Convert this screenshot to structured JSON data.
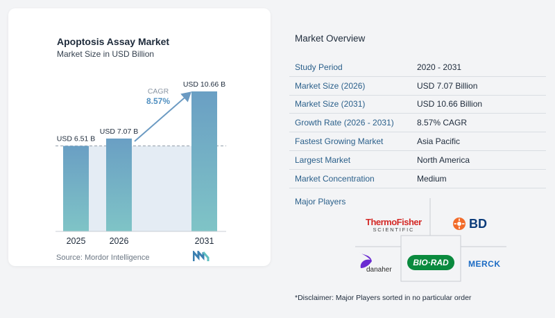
{
  "chart_data": {
    "type": "bar",
    "title": "Apoptosis Assay Market",
    "subtitle": "Market Size in USD Billion",
    "categories": [
      "2025",
      "2026",
      "2031"
    ],
    "values": [
      6.51,
      7.07,
      10.66
    ],
    "data_labels": [
      "USD 6.51 B",
      "USD 7.07 B",
      "USD 10.66 B"
    ],
    "cagr_label": "CAGR",
    "cagr_value": "8.57%",
    "ylim": [
      0,
      11.5
    ],
    "bar_color": "#6a9fc4",
    "bar_color_bottom": "#7fc4c6",
    "area_color": "#e4ecf4",
    "arrow_color": "#6b9ac2",
    "grid": false
  },
  "source_label": "Source:",
  "source_name": "Mordor Intelligence",
  "overview": {
    "title": "Market Overview",
    "rows": [
      {
        "label": "Study Period",
        "value": "2020 - 2031"
      },
      {
        "label": "Market Size (2026)",
        "value": "USD 7.07 Billion"
      },
      {
        "label": "Market Size (2031)",
        "value": "USD 10.66 Billion"
      },
      {
        "label": "Growth Rate (2026 - 2031)",
        "value": "8.57% CAGR"
      },
      {
        "label": "Fastest Growing Market",
        "value": "Asia Pacific"
      },
      {
        "label": "Largest Market",
        "value": "North America"
      },
      {
        "label": "Market Concentration",
        "value": "Medium"
      }
    ]
  },
  "players": {
    "title": "Major Players",
    "thermo_line1": "ThermoFisher",
    "thermo_line2": "SCIENTIFIC",
    "bd": "BD",
    "danaher": "danaher",
    "biorad": "BIO·RAD",
    "merck": "MERCK"
  },
  "disclaimer": "*Disclaimer: Major Players sorted in no particular order",
  "colors": {
    "accent": "#2a5f8a",
    "label_blue": "#2a5f8a"
  }
}
